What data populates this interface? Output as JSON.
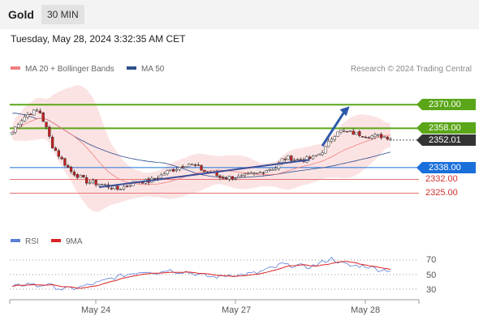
{
  "header": {
    "instrument": "Gold",
    "timeframe": "30 MIN"
  },
  "datetime": "Tuesday, May 28, 2024 3:32:35 AM CET",
  "legend": {
    "ma20": {
      "label": "MA 20 + Bollinger Bands",
      "color": "#f08080"
    },
    "ma50": {
      "label": "MA 50",
      "color": "#2d4e8c"
    }
  },
  "credit": "Research © 2024 Trading Central",
  "levels": [
    {
      "value": "2370.00",
      "style": "green",
      "color": "#5aa618"
    },
    {
      "value": "2358.00",
      "style": "green",
      "color": "#5aa618"
    },
    {
      "value": "2352.01",
      "style": "dark",
      "color": "#333333"
    },
    {
      "value": "2338.00",
      "style": "blue",
      "color": "#1a6fdb"
    },
    {
      "value": "2332.00",
      "style": "plain",
      "color": "#e57373"
    },
    {
      "value": "2325.00",
      "style": "plain",
      "color": "#e57373"
    }
  ],
  "x_axis": [
    "May 24",
    "May 27",
    "May 28"
  ],
  "rsi": {
    "legend": {
      "rsi": "RSI",
      "ma": "9MA"
    },
    "colors": {
      "rsi": "#5b7fd6",
      "ma": "#dd2222"
    },
    "levels": [
      "70",
      "50",
      "30"
    ]
  },
  "chart_data": {
    "type": "candlestick",
    "price_range": [
      2312,
      2380
    ],
    "rsi_range": [
      20,
      80
    ],
    "price_path": [
      [
        0,
        2356
      ],
      [
        2,
        2361
      ],
      [
        4,
        2364
      ],
      [
        6,
        2366
      ],
      [
        8,
        2367
      ],
      [
        9,
        2366
      ],
      [
        11,
        2358
      ],
      [
        13,
        2349
      ],
      [
        16,
        2342
      ],
      [
        19,
        2336
      ],
      [
        21,
        2334
      ],
      [
        24,
        2331
      ],
      [
        27,
        2330
      ],
      [
        30,
        2329
      ],
      [
        34,
        2327
      ],
      [
        37,
        2329
      ],
      [
        40,
        2331
      ],
      [
        44,
        2331
      ],
      [
        47,
        2333
      ],
      [
        50,
        2336
      ],
      [
        52,
        2337
      ],
      [
        55,
        2339
      ],
      [
        57,
        2340
      ],
      [
        60,
        2338
      ],
      [
        62,
        2336
      ],
      [
        65,
        2335
      ],
      [
        67,
        2333
      ],
      [
        70,
        2333
      ],
      [
        73,
        2333
      ],
      [
        76,
        2334
      ],
      [
        79,
        2335
      ],
      [
        82,
        2337
      ],
      [
        85,
        2338
      ],
      [
        87,
        2342
      ],
      [
        89,
        2343
      ],
      [
        92,
        2342
      ],
      [
        94,
        2342
      ],
      [
        97,
        2343
      ],
      [
        99,
        2345
      ],
      [
        101,
        2348
      ],
      [
        103,
        2353
      ],
      [
        105,
        2357
      ],
      [
        108,
        2356
      ],
      [
        112,
        2355
      ],
      [
        116,
        2354
      ],
      [
        120,
        2354
      ],
      [
        122,
        2353
      ]
    ],
    "rsi_path": [
      [
        0,
        32
      ],
      [
        3,
        36
      ],
      [
        6,
        38
      ],
      [
        8,
        34
      ],
      [
        11,
        37
      ],
      [
        13,
        34
      ],
      [
        16,
        30
      ],
      [
        20,
        31
      ],
      [
        24,
        35
      ],
      [
        28,
        39
      ],
      [
        32,
        45
      ],
      [
        36,
        49
      ],
      [
        40,
        53
      ],
      [
        44,
        55
      ],
      [
        47,
        52
      ],
      [
        50,
        57
      ],
      [
        53,
        54
      ],
      [
        56,
        54
      ],
      [
        60,
        50
      ],
      [
        64,
        47
      ],
      [
        67,
        47
      ],
      [
        70,
        50
      ],
      [
        73,
        49
      ],
      [
        76,
        51
      ],
      [
        79,
        52
      ],
      [
        82,
        57
      ],
      [
        85,
        60
      ],
      [
        87,
        65
      ],
      [
        89,
        62
      ],
      [
        92,
        63
      ],
      [
        95,
        60
      ],
      [
        98,
        63
      ],
      [
        101,
        69
      ],
      [
        103,
        72
      ],
      [
        106,
        66
      ],
      [
        109,
        62
      ],
      [
        112,
        62
      ],
      [
        115,
        61
      ],
      [
        118,
        57
      ],
      [
        122,
        56
      ]
    ],
    "trendlines": [
      {
        "from": [
          2328,
          0.23
        ],
        "to": [
          2342,
          0.78
        ],
        "color": "#3a4e9a"
      },
      {
        "arrow_from": [
          2349,
          0.81
        ],
        "arrow_to": [
          2370,
          0.88
        ],
        "color": "#2d5aa8"
      }
    ]
  }
}
